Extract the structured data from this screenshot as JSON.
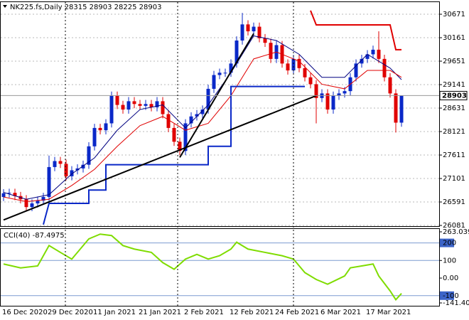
{
  "chart_data": [
    {
      "type": "candlestick",
      "title": "NK225.fs,Daily  28315 28903 28225 28903",
      "categories": [
        "16 Dec 2020",
        null,
        null,
        null,
        null,
        null,
        null,
        null,
        "29 Dec 2020",
        null,
        null,
        null,
        null,
        null,
        null,
        null,
        "11 Jan 2021",
        null,
        null,
        null,
        null,
        null,
        null,
        null,
        "21 Jan 2021",
        null,
        null,
        null,
        null,
        null,
        null,
        null,
        "2 Feb 2021",
        null,
        null,
        null,
        null,
        null,
        null,
        null,
        "12 Feb 2021",
        null,
        null,
        null,
        null,
        null,
        null,
        null,
        "24 Feb 2021",
        null,
        null,
        null,
        null,
        null,
        null,
        null,
        "6 Mar 2021",
        null,
        null,
        null,
        null,
        null,
        null,
        null,
        "17 Mar 2021",
        null,
        null,
        null,
        null,
        null,
        null
      ],
      "open": [
        26700,
        26780,
        26790,
        26720,
        26650,
        26480,
        26560,
        26620,
        26700,
        27350,
        27480,
        27420,
        27150,
        27280,
        27320,
        27400,
        27800,
        28200,
        28150,
        28300,
        28900,
        28700,
        28600,
        28780,
        28720,
        28680,
        28720,
        28650,
        28780,
        28500,
        28200,
        27900,
        27700,
        28300,
        28450,
        28500,
        28600,
        29050,
        29350,
        29400,
        29400,
        29600,
        30100,
        30450,
        30300,
        30400,
        30150,
        30050,
        29700,
        30000,
        29600,
        29450,
        29700,
        29500,
        29300,
        29150,
        28850,
        28950,
        28600,
        28900,
        28950,
        29000,
        29300,
        29600,
        29700,
        29800,
        29900,
        29700,
        29300,
        28950,
        28315
      ],
      "high": [
        26870,
        26880,
        26880,
        26810,
        26740,
        26650,
        26710,
        26790,
        27600,
        27570,
        27570,
        27510,
        27370,
        27410,
        27490,
        27890,
        28290,
        28290,
        28390,
        28990,
        28990,
        28790,
        28870,
        28870,
        28810,
        28810,
        28810,
        28870,
        28870,
        28590,
        28290,
        27990,
        28390,
        28540,
        28590,
        28690,
        29140,
        29440,
        29490,
        29490,
        29690,
        30190,
        30700,
        30540,
        30490,
        30490,
        30240,
        30140,
        30090,
        30090,
        29690,
        29790,
        29790,
        29590,
        29390,
        29240,
        29040,
        29040,
        28990,
        29040,
        29090,
        29390,
        29690,
        29790,
        29890,
        29990,
        30300,
        29790,
        29390,
        29040,
        28903
      ],
      "low": [
        26610,
        26690,
        26630,
        26560,
        26390,
        26390,
        26470,
        26530,
        26610,
        27260,
        27330,
        27060,
        27060,
        27190,
        27230,
        27310,
        27710,
        28060,
        28060,
        28210,
        28610,
        28510,
        28510,
        28630,
        28590,
        28590,
        28560,
        28560,
        28410,
        28110,
        27810,
        27610,
        27610,
        28210,
        28360,
        28410,
        28510,
        28960,
        29260,
        29310,
        29310,
        29510,
        30010,
        30210,
        30210,
        30060,
        29960,
        29610,
        29610,
        29510,
        29360,
        29360,
        29410,
        29210,
        29060,
        28300,
        28760,
        28510,
        28510,
        28810,
        28860,
        28910,
        29210,
        29510,
        29610,
        29710,
        29610,
        29210,
        28860,
        28100,
        28225
      ],
      "close": [
        26780,
        26790,
        26720,
        26650,
        26480,
        26560,
        26620,
        26700,
        27350,
        27480,
        27420,
        27150,
        27280,
        27320,
        27400,
        27800,
        28200,
        28150,
        28300,
        28900,
        28700,
        28600,
        28780,
        28720,
        28680,
        28720,
        28650,
        28780,
        28500,
        28200,
        27900,
        27700,
        28300,
        28450,
        28500,
        28600,
        29050,
        29350,
        29400,
        29400,
        29600,
        30100,
        30450,
        30300,
        30400,
        30150,
        30050,
        29700,
        30000,
        29600,
        29450,
        29700,
        29500,
        29300,
        29150,
        28850,
        28950,
        28600,
        28900,
        28950,
        29000,
        29300,
        29600,
        29700,
        29800,
        29900,
        29700,
        29300,
        28950,
        28315,
        28903
      ],
      "up_color": "#0a28c8",
      "down_color": "#e00000",
      "last_price": 28903,
      "overlays": [
        {
          "color": "#000080",
          "x": [
            0,
            4,
            8,
            12,
            16,
            20,
            24,
            28,
            32,
            36,
            40,
            44,
            48,
            52,
            56,
            60,
            64,
            68,
            70
          ],
          "values": [
            26800,
            26650,
            26750,
            27200,
            27550,
            28150,
            28600,
            28700,
            28200,
            28700,
            29400,
            30200,
            30100,
            29800,
            29300,
            29300,
            29800,
            29500,
            29250
          ]
        },
        {
          "color": "#e00000",
          "x": [
            0,
            4,
            8,
            12,
            16,
            20,
            24,
            28,
            32,
            36,
            40,
            44,
            48,
            52,
            56,
            60,
            64,
            68,
            70
          ],
          "values": [
            26700,
            26600,
            26650,
            26950,
            27300,
            27800,
            28250,
            28450,
            28150,
            28300,
            28900,
            29700,
            29850,
            29650,
            29150,
            29050,
            29450,
            29450,
            29300
          ]
        },
        {
          "color": "#0a28c8",
          "x": [
            7,
            8,
            15,
            15,
            18,
            18,
            36,
            36,
            40,
            40,
            53
          ],
          "values": [
            26100,
            26560,
            26560,
            26850,
            26850,
            27400,
            27400,
            27800,
            27800,
            29100,
            29100
          ]
        },
        {
          "color": "#e00000",
          "x": [
            54,
            55,
            68,
            69,
            70
          ],
          "values": [
            30750,
            30440,
            30440,
            29900,
            29900
          ]
        },
        {
          "color": "#000000",
          "x": [
            0,
            55
          ],
          "values": [
            26200,
            28900
          ]
        },
        {
          "color": "#000000",
          "x": [
            31,
            44
          ],
          "values": [
            27560,
            30250
          ]
        }
      ],
      "ylim": [
        26066,
        30934
      ],
      "yticks": [
        26081,
        26591,
        27101,
        27611,
        28121,
        28631,
        29141,
        29651,
        30161,
        30671
      ],
      "grid": true
    },
    {
      "type": "line",
      "title": "CCI(40) -87.4975",
      "x": [
        0,
        3,
        6,
        8,
        10,
        12,
        15,
        17,
        19,
        21,
        23,
        26,
        28,
        30,
        32,
        34,
        36,
        38,
        40,
        41,
        43,
        46,
        49,
        51,
        53,
        55,
        57,
        60,
        61,
        63,
        65,
        66,
        68,
        69,
        70
      ],
      "values": [
        80,
        58,
        69,
        185,
        146,
        108,
        223,
        250,
        242,
        185,
        165,
        146,
        88,
        50,
        108,
        135,
        108,
        127,
        165,
        204,
        165,
        146,
        127,
        108,
        31,
        -8,
        -35,
        12,
        58,
        69,
        80,
        12,
        -73,
        -123,
        -87.4975
      ],
      "color": "#7fdc00",
      "ylim": [
        -141.404,
        263.0396
      ],
      "yticks": [
        263.0396,
        200,
        100,
        {
          "value": 0,
          "label": "0.00"
        },
        -100,
        -141.404
      ],
      "levels": [
        200,
        100,
        -100
      ],
      "level_color": "#7d9bd0"
    }
  ]
}
